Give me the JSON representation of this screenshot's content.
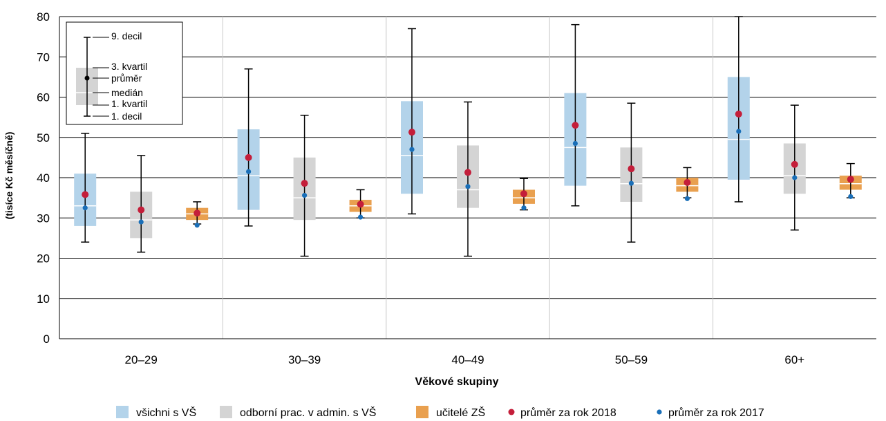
{
  "chart_data": {
    "type": "box",
    "xlabel": "Věkové skupiny",
    "ylabel": "(tisíce Kč měsíčně)",
    "ylim": [
      0,
      80
    ],
    "yticks": [
      0,
      10,
      20,
      30,
      40,
      50,
      60,
      70,
      80
    ],
    "grid": true,
    "categories": [
      "20–29",
      "30–39",
      "40–49",
      "50–59",
      "60+"
    ],
    "series": [
      {
        "name": "všichni s VŠ",
        "color": "#b3d3ea",
        "values": [
          {
            "d1": 24,
            "q1": 28,
            "median": 33,
            "q3": 41,
            "d9": 51,
            "mean2018": 35.8,
            "mean2017": 32.5
          },
          {
            "d1": 28,
            "q1": 32,
            "median": 40.5,
            "q3": 52,
            "d9": 67,
            "mean2018": 45,
            "mean2017": 41.5
          },
          {
            "d1": 31,
            "q1": 36,
            "median": 45.5,
            "q3": 59,
            "d9": 77,
            "mean2018": 51.3,
            "mean2017": 47
          },
          {
            "d1": 33,
            "q1": 38,
            "median": 47.5,
            "q3": 61,
            "d9": 78,
            "mean2018": 53,
            "mean2017": 48.5
          },
          {
            "d1": 34,
            "q1": 39.5,
            "median": 49.5,
            "q3": 65,
            "d9": 80,
            "mean2018": 55.8,
            "mean2017": 51.5
          }
        ]
      },
      {
        "name": "odborní prac. v admin. s VŠ",
        "color": "#d4d4d4",
        "values": [
          {
            "d1": 21.5,
            "q1": 25,
            "median": 29.5,
            "q3": 36.5,
            "d9": 45.5,
            "mean2018": 32,
            "mean2017": 29
          },
          {
            "d1": 20.5,
            "q1": 29.5,
            "median": 35,
            "q3": 45,
            "d9": 55.5,
            "mean2018": 38.6,
            "mean2017": 35.6
          },
          {
            "d1": 20.5,
            "q1": 32.5,
            "median": 37,
            "q3": 48,
            "d9": 58.8,
            "mean2018": 41.3,
            "mean2017": 37.8
          },
          {
            "d1": 24,
            "q1": 34,
            "median": 38.5,
            "q3": 47.5,
            "d9": 58.5,
            "mean2018": 42.2,
            "mean2017": 38.6
          },
          {
            "d1": 27,
            "q1": 36,
            "median": 40.5,
            "q3": 48.5,
            "d9": 58,
            "mean2018": 43.3,
            "mean2017": 40
          }
        ]
      },
      {
        "name": "učitelé ZŠ",
        "color": "#e9a04f",
        "values": [
          {
            "d1": 28.5,
            "q1": 29.5,
            "median": 31,
            "q3": 32.5,
            "d9": 34,
            "mean2018": 31.2,
            "mean2017": 28.2
          },
          {
            "d1": 30,
            "q1": 31.5,
            "median": 33,
            "q3": 34.5,
            "d9": 37,
            "mean2018": 33.4,
            "mean2017": 30.2
          },
          {
            "d1": 32,
            "q1": 33.5,
            "median": 35,
            "q3": 37,
            "d9": 39.8,
            "mean2018": 36,
            "mean2017": 32.5
          },
          {
            "d1": 35,
            "q1": 36.5,
            "median": 38,
            "q3": 40,
            "d9": 42.5,
            "mean2018": 38.8,
            "mean2017": 34.8
          },
          {
            "d1": 35,
            "q1": 37,
            "median": 38.5,
            "q3": 40.5,
            "d9": 43.5,
            "mean2018": 39.6,
            "mean2017": 35.3
          }
        ]
      }
    ],
    "markers": [
      {
        "name": "průměr za rok 2018",
        "color": "#c41e3a"
      },
      {
        "name": "průměr za rok 2017",
        "color": "#1a6fb8"
      }
    ],
    "inset_key": {
      "d9": "9. decil",
      "q3": "3. kvartil",
      "mean": "průměr",
      "median": "medián",
      "q1": "1. kvartil",
      "d1": "1. decil"
    }
  }
}
